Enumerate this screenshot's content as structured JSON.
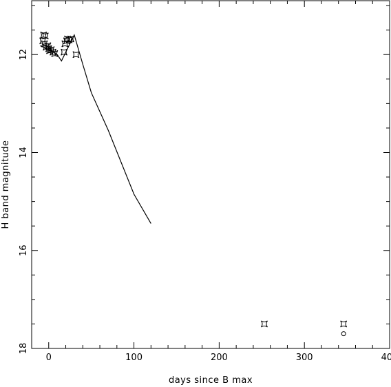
{
  "chart_data": {
    "type": "scatter",
    "title": "",
    "xlabel": "days since B max",
    "ylabel": "H band magnitude",
    "xlim": [
      -20,
      400
    ],
    "ylim": [
      18,
      10.9
    ],
    "y_inverted": true,
    "grid": false,
    "x_ticks": [
      0,
      100,
      200,
      300,
      400
    ],
    "y_ticks": [
      12,
      14,
      16,
      18
    ],
    "x_tick_labels": [
      "0",
      "100",
      "200",
      "300",
      "400"
    ],
    "y_tick_labels": [
      "12",
      "14",
      "16",
      "18"
    ],
    "series": [
      {
        "style": "square-star-markers",
        "points": [
          {
            "x": -6,
            "y": 11.6
          },
          {
            "x": -4,
            "y": 11.62
          },
          {
            "x": -7,
            "y": 11.72
          },
          {
            "x": -5,
            "y": 11.78
          },
          {
            "x": -3,
            "y": 11.85
          },
          {
            "x": -1,
            "y": 11.82
          },
          {
            "x": 0,
            "y": 11.88
          },
          {
            "x": 1,
            "y": 11.92
          },
          {
            "x": 3,
            "y": 11.9
          },
          {
            "x": 5,
            "y": 11.95
          },
          {
            "x": 7,
            "y": 11.98
          },
          {
            "x": 18,
            "y": 11.95
          },
          {
            "x": 19,
            "y": 11.78
          },
          {
            "x": 21,
            "y": 11.72
          },
          {
            "x": 22,
            "y": 11.68
          },
          {
            "x": 24,
            "y": 11.7
          },
          {
            "x": 26,
            "y": 11.68
          },
          {
            "x": 32,
            "y": 12.0
          },
          {
            "x": 253,
            "y": 17.5
          },
          {
            "x": 346,
            "y": 17.5
          }
        ]
      },
      {
        "style": "circle-markers",
        "points": [
          {
            "x": 346,
            "y": 17.7
          }
        ]
      },
      {
        "style": "line",
        "points": [
          {
            "x": -10,
            "y": 11.82
          },
          {
            "x": 0,
            "y": 11.9
          },
          {
            "x": 10,
            "y": 12.0
          },
          {
            "x": 15,
            "y": 12.13
          },
          {
            "x": 22,
            "y": 11.88
          },
          {
            "x": 30,
            "y": 11.6
          },
          {
            "x": 40,
            "y": 12.2
          },
          {
            "x": 50,
            "y": 12.78
          },
          {
            "x": 70,
            "y": 13.55
          },
          {
            "x": 100,
            "y": 14.85
          },
          {
            "x": 120,
            "y": 15.45
          }
        ]
      }
    ]
  }
}
